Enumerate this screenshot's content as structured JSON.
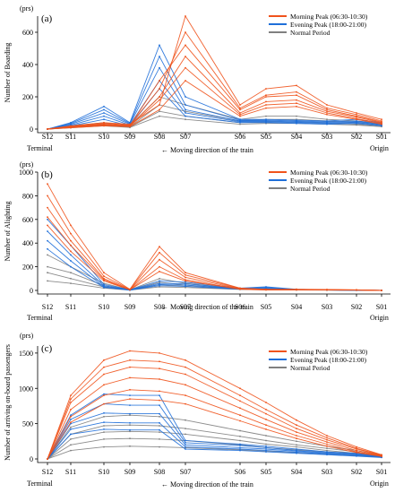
{
  "stations": [
    "S12",
    "S11",
    "S10",
    "S09",
    "S08",
    "S07",
    "S06",
    "S05",
    "S04",
    "S03",
    "S02",
    "S01"
  ],
  "endpoint_left": "Terminal",
  "endpoint_right": "Origin",
  "direction_text": "Moving direction of the train",
  "direction_arrow": "←",
  "colors": {
    "morning": "#f0531c",
    "evening": "#1f6fd9",
    "normal": "#808080",
    "axis": "#000000"
  },
  "chart_data": [
    {
      "type": "line",
      "panel_label": "(a)",
      "unit": "(prs)",
      "ylabel": "Number of Boarding",
      "ylim": [
        0,
        700
      ],
      "yticks": [
        0,
        200,
        400,
        600
      ],
      "legend": {
        "placement": "top-right",
        "entries": [
          "Morning Peak (06:30-10:30)",
          "Evening Peak (18:00-21:00)",
          "Normal Period"
        ]
      },
      "categories": [
        "S12",
        "S11",
        "S10",
        "S09",
        "S08",
        "S07",
        "S06",
        "S05",
        "S04",
        "S03",
        "S02",
        "S01"
      ],
      "series": [
        {
          "group": "morning",
          "lines": [
            [
              0,
              20,
              40,
              30,
              150,
              700,
              150,
              250,
              270,
              150,
              100,
              60
            ],
            [
              0,
              15,
              35,
              25,
              250,
              600,
              130,
              210,
              230,
              130,
              90,
              50
            ],
            [
              0,
              18,
              30,
              20,
              300,
              520,
              120,
              200,
              210,
              120,
              80,
              45
            ],
            [
              0,
              12,
              28,
              22,
              200,
              450,
              100,
              170,
              180,
              110,
              75,
              40
            ],
            [
              0,
              10,
              25,
              18,
              180,
              380,
              90,
              150,
              160,
              100,
              65,
              35
            ],
            [
              0,
              8,
              20,
              15,
              120,
              300,
              80,
              130,
              140,
              90,
              60,
              30
            ]
          ]
        },
        {
          "group": "evening",
          "lines": [
            [
              0,
              40,
              140,
              40,
              520,
              200,
              60,
              60,
              55,
              50,
              60,
              40
            ],
            [
              0,
              35,
              120,
              35,
              450,
              150,
              55,
              55,
              50,
              45,
              50,
              35
            ],
            [
              0,
              30,
              100,
              30,
              380,
              120,
              50,
              50,
              45,
              40,
              45,
              30
            ],
            [
              0,
              25,
              80,
              25,
              300,
              100,
              45,
              45,
              40,
              35,
              40,
              25
            ],
            [
              0,
              20,
              60,
              20,
              250,
              80,
              40,
              40,
              35,
              30,
              35,
              20
            ]
          ]
        },
        {
          "group": "normal",
          "lines": [
            [
              0,
              20,
              40,
              20,
              200,
              150,
              60,
              80,
              80,
              60,
              50,
              30
            ],
            [
              0,
              15,
              30,
              15,
              150,
              110,
              50,
              60,
              60,
              50,
              40,
              25
            ],
            [
              0,
              10,
              25,
              12,
              110,
              80,
              40,
              45,
              45,
              40,
              30,
              20
            ],
            [
              0,
              8,
              20,
              10,
              80,
              60,
              30,
              35,
              35,
              30,
              25,
              15
            ]
          ]
        }
      ]
    },
    {
      "type": "line",
      "panel_label": "(b)",
      "unit": "(prs)",
      "ylabel": "Number of Alighting",
      "ylim": [
        0,
        1000
      ],
      "yticks": [
        0,
        200,
        400,
        600,
        800,
        1000
      ],
      "legend": {
        "placement": "top-right",
        "entries": [
          "Morning Peak (06:30-10:30)",
          "Evening Peak (18:00-21:00)",
          "Normal Period"
        ]
      },
      "categories": [
        "S12",
        "S11",
        "S10",
        "S09",
        "S08",
        "S07",
        "S06",
        "S05",
        "S04",
        "S03",
        "S02",
        "S01"
      ],
      "series": [
        {
          "group": "morning",
          "lines": [
            [
              900,
              550,
              150,
              10,
              370,
              150,
              20,
              10,
              10,
              8,
              5,
              0
            ],
            [
              800,
              480,
              120,
              8,
              320,
              130,
              18,
              8,
              8,
              6,
              4,
              0
            ],
            [
              700,
              420,
              100,
              6,
              260,
              110,
              15,
              6,
              6,
              5,
              3,
              0
            ],
            [
              620,
              380,
              90,
              5,
              200,
              90,
              12,
              5,
              5,
              4,
              3,
              0
            ],
            [
              550,
              330,
              80,
              5,
              160,
              80,
              10,
              4,
              4,
              3,
              2,
              0
            ]
          ]
        },
        {
          "group": "evening",
          "lines": [
            [
              600,
              380,
              50,
              5,
              80,
              70,
              20,
              30,
              10,
              5,
              3,
              0
            ],
            [
              500,
              300,
              40,
              4,
              60,
              55,
              15,
              25,
              8,
              4,
              2,
              0
            ],
            [
              420,
              250,
              30,
              3,
              50,
              45,
              12,
              20,
              6,
              3,
              2,
              0
            ],
            [
              350,
              200,
              25,
              2,
              40,
              35,
              10,
              15,
              5,
              3,
              1,
              0
            ]
          ]
        },
        {
          "group": "normal",
          "lines": [
            [
              300,
              200,
              60,
              5,
              100,
              60,
              15,
              15,
              8,
              5,
              3,
              0
            ],
            [
              200,
              150,
              40,
              4,
              70,
              45,
              12,
              10,
              6,
              4,
              2,
              0
            ],
            [
              150,
              100,
              30,
              3,
              50,
              35,
              10,
              8,
              5,
              3,
              2,
              0
            ],
            [
              80,
              60,
              20,
              2,
              30,
              25,
              8,
              5,
              3,
              2,
              1,
              0
            ]
          ]
        }
      ]
    },
    {
      "type": "line",
      "panel_label": "(c)",
      "unit": "(prs)",
      "ylabel": "Number of arriving on-board passengers",
      "ylim": [
        0,
        1600
      ],
      "yticks": [
        0,
        500,
        1000,
        1500
      ],
      "legend": {
        "placement": "top-right",
        "entries": [
          "Morning Peak (06:30-10:30)",
          "Evening Peak (18:00-21:00)",
          "Normal Period"
        ]
      },
      "categories": [
        "S12",
        "S11",
        "S10",
        "S09",
        "S08",
        "S07",
        "S06",
        "S05",
        "S04",
        "S03",
        "S02",
        "S01"
      ],
      "series": [
        {
          "group": "morning",
          "lines": [
            [
              0,
              900,
              1400,
              1530,
              1500,
              1400,
              1000,
              800,
              550,
              330,
              170,
              60
            ],
            [
              0,
              850,
              1300,
              1400,
              1380,
              1300,
              900,
              700,
              480,
              300,
              150,
              55
            ],
            [
              0,
              800,
              1200,
              1300,
              1280,
              1200,
              820,
              640,
              430,
              270,
              140,
              50
            ],
            [
              0,
              700,
              1050,
              1150,
              1130,
              1050,
              720,
              560,
              380,
              240,
              120,
              45
            ],
            [
              0,
              600,
              900,
              980,
              960,
              900,
              620,
              480,
              330,
              210,
              100,
              40
            ],
            [
              0,
              520,
              780,
              850,
              830,
              780,
              540,
              420,
              290,
              180,
              90,
              35
            ]
          ]
        },
        {
          "group": "evening",
          "lines": [
            [
              0,
              620,
              920,
              900,
              900,
              260,
              210,
              180,
              140,
              100,
              80,
              40
            ],
            [
              0,
              560,
              780,
              760,
              760,
              230,
              190,
              160,
              120,
              90,
              70,
              35
            ],
            [
              0,
              500,
              650,
              640,
              640,
              200,
              160,
              140,
              110,
              80,
              60,
              30
            ],
            [
              0,
              420,
              520,
              510,
              510,
              170,
              140,
              120,
              95,
              70,
              50,
              25
            ],
            [
              0,
              350,
              420,
              410,
              410,
              140,
              120,
              100,
              80,
              60,
              40,
              20
            ]
          ]
        },
        {
          "group": "normal",
          "lines": [
            [
              0,
              450,
              600,
              620,
              600,
              550,
              400,
              330,
              250,
              180,
              120,
              50
            ],
            [
              0,
              350,
              470,
              480,
              470,
              430,
              320,
              260,
              200,
              150,
              100,
              40
            ],
            [
              0,
              280,
              380,
              390,
              380,
              350,
              260,
              210,
              170,
              120,
              80,
              35
            ],
            [
              0,
              200,
              280,
              290,
              280,
              260,
              200,
              160,
              130,
              100,
              60,
              30
            ],
            [
              0,
              120,
              170,
              180,
              170,
              160,
              130,
              110,
              90,
              70,
              45,
              25
            ]
          ]
        }
      ]
    }
  ]
}
